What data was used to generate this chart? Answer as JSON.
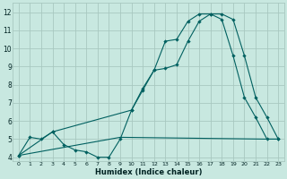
{
  "xlabel": "Humidex (Indice chaleur)",
  "bg_color": "#c8e8e0",
  "grid_color": "#a8c8c0",
  "line_color": "#006060",
  "xlim": [
    -0.5,
    23.5
  ],
  "ylim": [
    3.8,
    12.5
  ],
  "yticks": [
    4,
    5,
    6,
    7,
    8,
    9,
    10,
    11,
    12
  ],
  "xticks": [
    0,
    1,
    2,
    3,
    4,
    5,
    6,
    7,
    8,
    9,
    10,
    11,
    12,
    13,
    14,
    15,
    16,
    17,
    18,
    19,
    20,
    21,
    22,
    23
  ],
  "line1_x": [
    0,
    1,
    2,
    3,
    4,
    5,
    6,
    7,
    8,
    9,
    10,
    11,
    12,
    13,
    14,
    15,
    16,
    17,
    18,
    19,
    20,
    21,
    22,
    23
  ],
  "line1_y": [
    4.1,
    5.1,
    5.0,
    5.4,
    4.7,
    4.4,
    4.3,
    4.0,
    4.0,
    5.0,
    6.6,
    7.8,
    8.8,
    10.4,
    10.5,
    11.5,
    11.9,
    11.9,
    11.6,
    9.6,
    7.3,
    6.2,
    5.0,
    5.0
  ],
  "line2_x": [
    0,
    3,
    10,
    11,
    12,
    13,
    14,
    15,
    16,
    17,
    18,
    19,
    20,
    21,
    22,
    23
  ],
  "line2_y": [
    4.1,
    5.4,
    6.6,
    7.7,
    8.8,
    8.9,
    9.1,
    10.4,
    11.5,
    11.9,
    11.9,
    11.6,
    9.6,
    7.3,
    6.2,
    5.0
  ],
  "line3_x": [
    0,
    9,
    22,
    23
  ],
  "line3_y": [
    4.1,
    5.1,
    5.0,
    5.0
  ]
}
